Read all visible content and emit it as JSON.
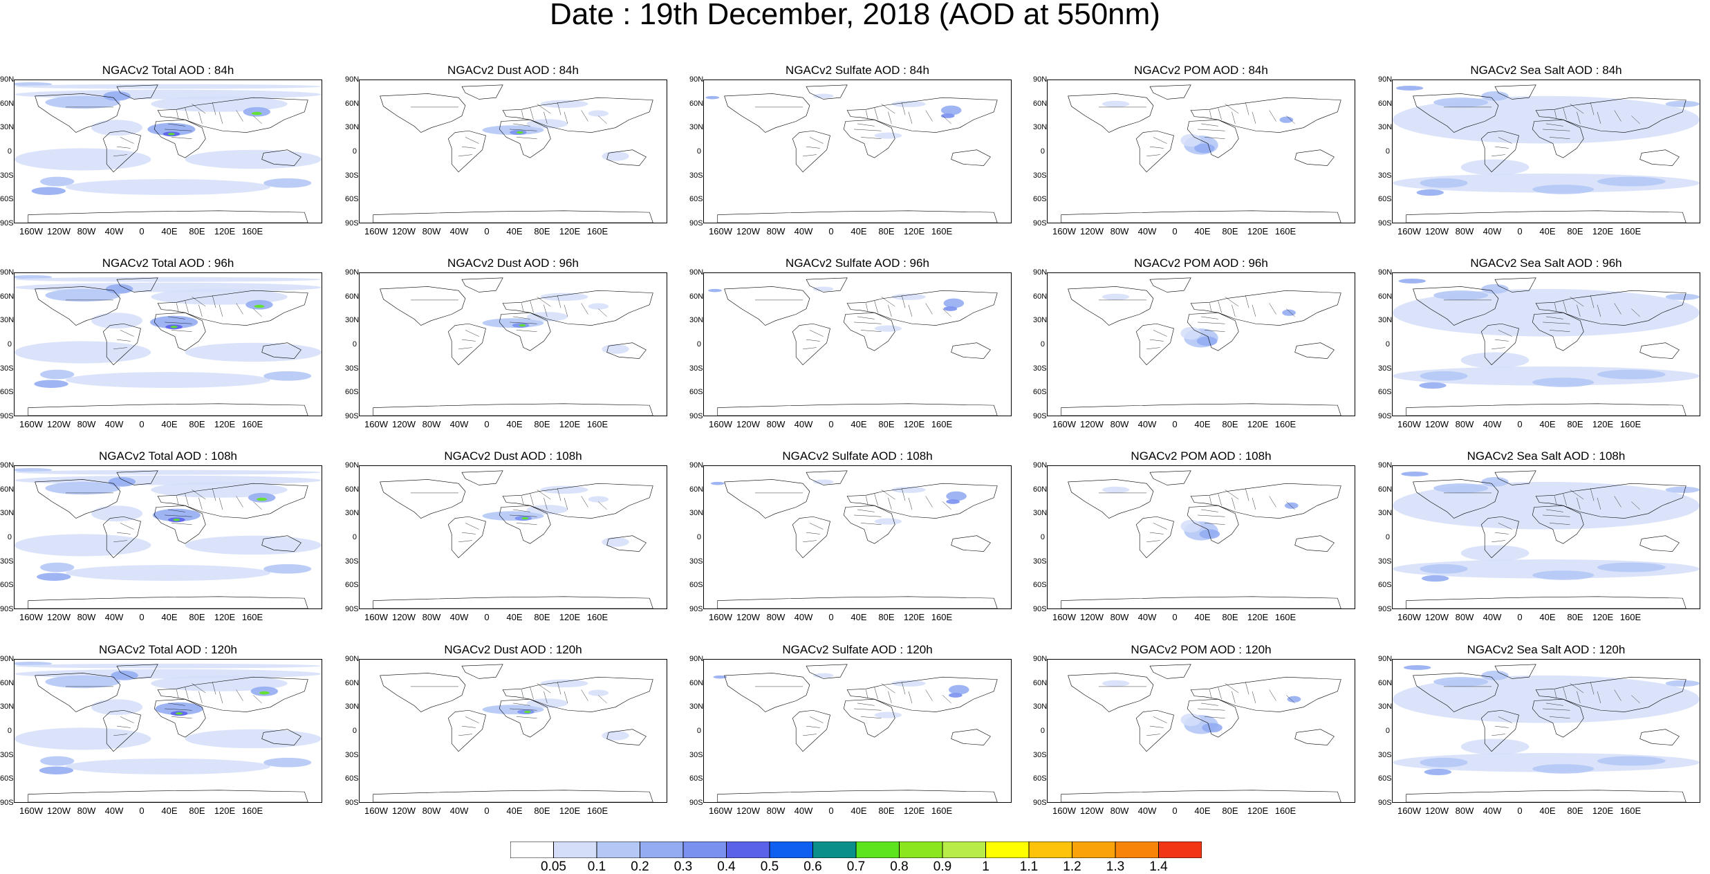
{
  "title": "Date : 19th December, 2018 (AOD at 550nm)",
  "panels": [
    {
      "title": "NGACv2 Total AOD : 84h"
    },
    {
      "title": "NGACv2 Dust AOD : 84h"
    },
    {
      "title": "NGACv2 Sulfate AOD : 84h"
    },
    {
      "title": "NGACv2 POM AOD : 84h"
    },
    {
      "title": "NGACv2 Sea Salt AOD : 84h"
    },
    {
      "title": "NGACv2 Total AOD : 96h"
    },
    {
      "title": "NGACv2 Dust AOD : 96h"
    },
    {
      "title": "NGACv2 Sulfate AOD : 96h"
    },
    {
      "title": "NGACv2 POM AOD : 96h"
    },
    {
      "title": "NGACv2 Sea Salt AOD : 96h"
    },
    {
      "title": "NGACv2 Total AOD : 108h"
    },
    {
      "title": "NGACv2 Dust AOD : 108h"
    },
    {
      "title": "NGACv2 Sulfate AOD : 108h"
    },
    {
      "title": "NGACv2 POM AOD : 108h"
    },
    {
      "title": "NGACv2 Sea Salt AOD : 108h"
    },
    {
      "title": "NGACv2 Total AOD : 120h"
    },
    {
      "title": "NGACv2 Dust AOD : 120h"
    },
    {
      "title": "NGACv2 Sulfate AOD : 120h"
    },
    {
      "title": "NGACv2 POM AOD : 120h"
    },
    {
      "title": "NGACv2 Sea Salt  AOD : 120h"
    }
  ],
  "lat_labels": [
    "90N",
    "60N",
    "30N",
    "0",
    "30S",
    "60S",
    "90S"
  ],
  "lon_labels": [
    "160W",
    "120W",
    "80W",
    "40W",
    "0",
    "40E",
    "80E",
    "120E",
    "160E"
  ],
  "colorbar": {
    "labels": [
      "0.05",
      "0.1",
      "0.2",
      "0.3",
      "0.4",
      "0.5",
      "0.6",
      "0.7",
      "0.8",
      "0.9",
      "1",
      "1.1",
      "1.2",
      "1.3",
      "1.4"
    ],
    "colors": [
      "#ffffff",
      "#d4def9",
      "#b4c8f6",
      "#94acf2",
      "#7a91ef",
      "#5b62ea",
      "#0f5ff0",
      "#0a8f8a",
      "#5ee41f",
      "#8ce61f",
      "#b8ec48",
      "#ffff00",
      "#fcc30a",
      "#f9a20a",
      "#f7850a",
      "#f23515"
    ]
  }
}
